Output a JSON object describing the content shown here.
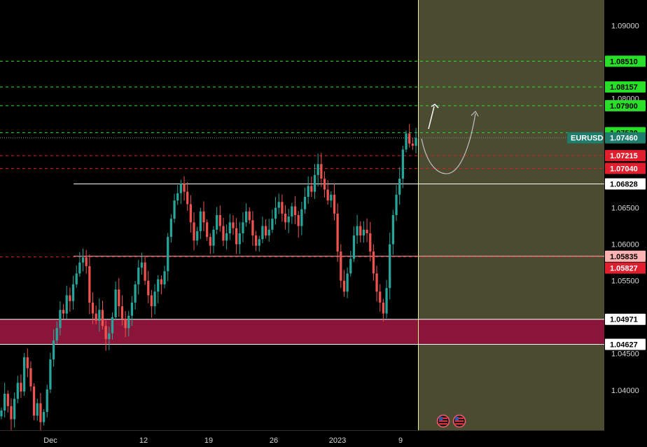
{
  "symbol": "EURUSD",
  "colors": {
    "background": "#000000",
    "bull": "#26a69a",
    "bear": "#ef5350",
    "forecast_zone": "#4b4b32",
    "demand_zone": "#8b1538",
    "green_level": "#27e027",
    "red_level": "#e01e2d",
    "white_level": "#ffffff",
    "pink_level": "#ffb3b3",
    "current_price": "#1f7d6c"
  },
  "chart_data": {
    "type": "candlestick",
    "symbol": "EURUSD",
    "ylim": [
      1.0345,
      1.0935
    ],
    "y_ticks": [
      "1.09000",
      "1.08000",
      "1.06500",
      "1.06000",
      "1.05500",
      "1.04500",
      "1.04000"
    ],
    "x_ticks": [
      "Dec",
      "12",
      "19",
      "26",
      "2023",
      "9"
    ],
    "current_price": "1.07460",
    "levels": [
      {
        "price": "1.08510",
        "style": "green-dashed"
      },
      {
        "price": "1.08157",
        "style": "green-dashed"
      },
      {
        "price": "1.07900",
        "style": "green-dashed"
      },
      {
        "price": "1.07530",
        "style": "green-dashed"
      },
      {
        "price": "1.07215",
        "style": "red-dashed"
      },
      {
        "price": "1.07040",
        "style": "red-dashed"
      },
      {
        "price": "1.06828",
        "style": "white-solid"
      },
      {
        "price": "1.05835",
        "style": "pink-solid"
      },
      {
        "price": "1.05827",
        "style": "red-dashed"
      },
      {
        "price": "1.04971",
        "style": "zone-top"
      },
      {
        "price": "1.04627",
        "style": "zone-bottom"
      }
    ],
    "demand_zone": [
      1.04627,
      1.04971
    ],
    "projection": "breakout arrow up to 1.07900 and a dip-then-rally curve toward 1.0790 area",
    "closes_series": [
      1.0372,
      1.0395,
      1.0378,
      1.036,
      1.0388,
      1.041,
      1.0398,
      1.0445,
      1.043,
      1.0405,
      1.0365,
      1.0382,
      1.0356,
      1.037,
      1.0401,
      1.0442,
      1.0468,
      1.0485,
      1.051,
      1.0505,
      1.053,
      1.0522,
      1.0545,
      1.056,
      1.0575,
      1.0582,
      1.057,
      1.052,
      1.0505,
      1.0495,
      1.051,
      1.0488,
      1.047,
      1.0478,
      1.05,
      1.0538,
      1.0515,
      1.0498,
      1.0485,
      1.0502,
      1.052,
      1.0545,
      1.0568,
      1.0575,
      1.055,
      1.053,
      1.0515,
      1.0535,
      1.0552,
      1.0545,
      1.0563,
      1.061,
      1.0635,
      1.066,
      1.067,
      1.0683,
      1.0672,
      1.0655,
      1.063,
      1.0605,
      1.0618,
      1.0645,
      1.063,
      1.061,
      1.0598,
      1.062,
      1.064,
      1.0625,
      1.0605,
      1.0615,
      1.063,
      1.0622,
      1.06,
      1.0615,
      1.063,
      1.0645,
      1.0633,
      1.0612,
      1.0598,
      1.0607,
      1.0625,
      1.0612,
      1.062,
      1.0635,
      1.065,
      1.0658,
      1.0642,
      1.063,
      1.0638,
      1.0652,
      1.064,
      1.0625,
      1.0648,
      1.0665,
      1.068,
      1.0672,
      1.0695,
      1.071,
      1.069,
      1.0675,
      1.066,
      1.0668,
      1.0642,
      1.059,
      1.055,
      1.0535,
      1.056,
      1.058,
      1.0612,
      1.0625,
      1.0612,
      1.062,
      1.0615,
      1.059,
      1.056,
      1.0535,
      1.052,
      1.0505,
      1.054,
      1.06,
      1.064,
      1.0668,
      1.069,
      1.073,
      1.0752,
      1.0738,
      1.0735,
      1.0746
    ]
  }
}
